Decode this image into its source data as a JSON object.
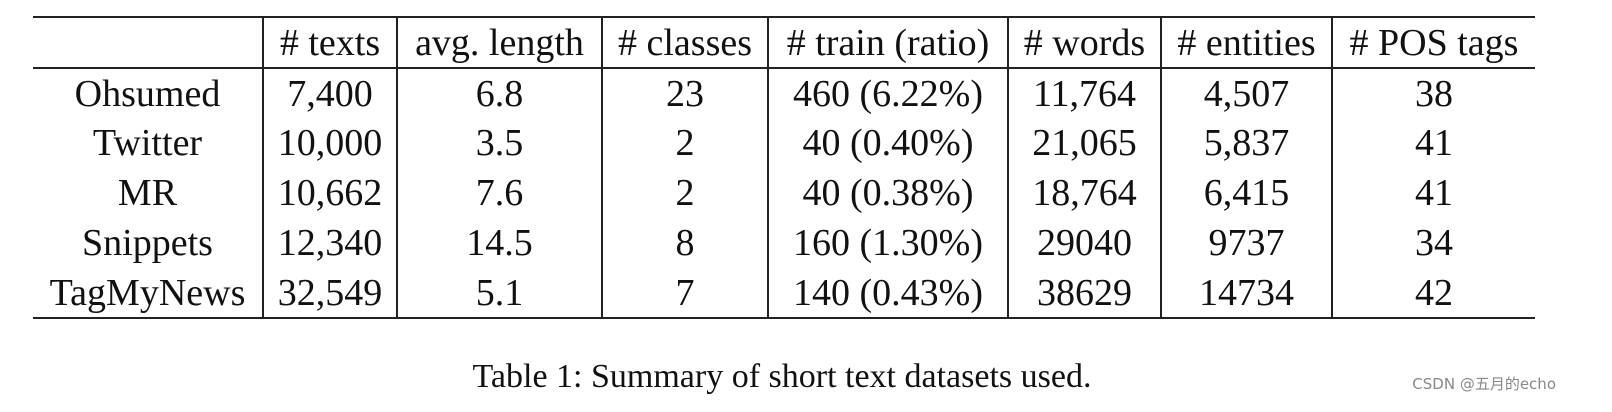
{
  "table": {
    "header": [
      "# texts",
      "avg. length",
      "# classes",
      "# train (ratio)",
      "# words",
      "# entities",
      "# POS tags"
    ],
    "rows": [
      [
        "Ohsumed",
        "7,400",
        "6.8",
        "23",
        "460 (6.22%)",
        "11,764",
        "4,507",
        "38"
      ],
      [
        "Twitter",
        "10,000",
        "3.5",
        "2",
        "40 (0.40%)",
        "21,065",
        "5,837",
        "41"
      ],
      [
        "MR",
        "10,662",
        "7.6",
        "2",
        "40 (0.38%)",
        "18,764",
        "6,415",
        "41"
      ],
      [
        "Snippets",
        "12,340",
        "14.5",
        "8",
        "160 (1.30%)",
        "29040",
        "9737",
        "34"
      ],
      [
        "TagMyNews",
        "32,549",
        "5.1",
        "7",
        "140 (0.43%)",
        "38629",
        "14734",
        "42"
      ]
    ],
    "caption": "Table 1: Summary of short text datasets used."
  },
  "watermark": "CSDN @五月的echo"
}
